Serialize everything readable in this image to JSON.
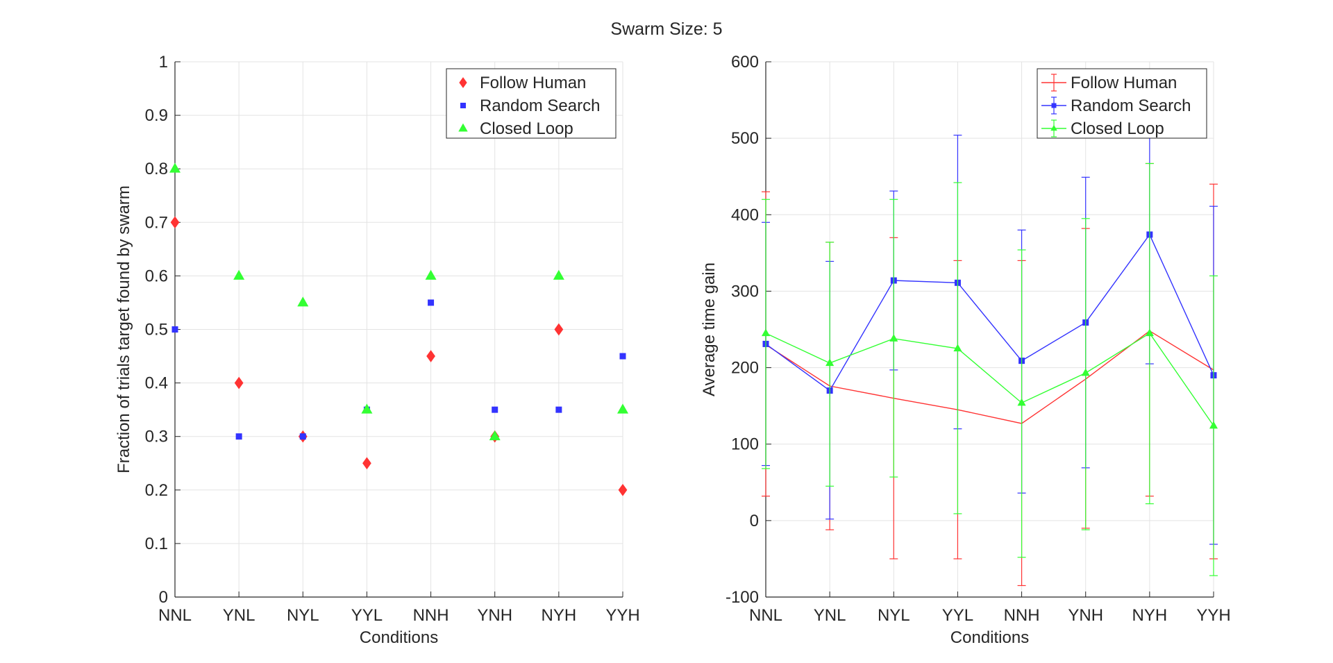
{
  "figure": {
    "title": "Swarm Size: 5",
    "colors": {
      "follow": "#ff3333",
      "random": "#3333ff",
      "closed": "#33ff33",
      "axis": "#262626",
      "grid": "#e3e3e3"
    }
  },
  "chart_data": [
    {
      "type": "scatter",
      "xlabel": "Conditions",
      "ylabel": "Fraction of trials target found by swarm",
      "categories": [
        "NNL",
        "YNL",
        "NYL",
        "YYL",
        "NNH",
        "YNH",
        "NYH",
        "YYH"
      ],
      "ylim": [
        0,
        1
      ],
      "yticks": [
        "0",
        "0.1",
        "0.2",
        "0.3",
        "0.4",
        "0.5",
        "0.6",
        "0.7",
        "0.8",
        "0.9",
        "1"
      ],
      "grid": true,
      "legend_position": "top-right",
      "series": [
        {
          "name": "Follow Human",
          "marker": "diamond",
          "values": [
            0.7,
            0.4,
            0.3,
            0.25,
            0.45,
            0.3,
            0.5,
            0.2
          ]
        },
        {
          "name": "Random Search",
          "marker": "square",
          "values": [
            0.5,
            0.3,
            0.3,
            0.35,
            0.55,
            0.35,
            0.35,
            0.45
          ]
        },
        {
          "name": "Closed Loop",
          "marker": "triangle",
          "values": [
            0.8,
            0.6,
            0.55,
            0.35,
            0.6,
            0.3,
            0.6,
            0.35
          ]
        }
      ]
    },
    {
      "type": "line",
      "xlabel": "Conditions",
      "ylabel": "Average time gain",
      "categories": [
        "NNL",
        "YNL",
        "NYL",
        "YYL",
        "NNH",
        "YNH",
        "NYH",
        "YYH"
      ],
      "ylim": [
        -100,
        600
      ],
      "yticks": [
        "-100",
        "0",
        "100",
        "200",
        "300",
        "400",
        "500",
        "600"
      ],
      "grid": true,
      "legend_position": "top-right",
      "series": [
        {
          "name": "Follow Human",
          "marker": "none",
          "values": [
            230,
            176,
            160,
            145,
            127,
            185,
            248,
            197
          ],
          "err_low": [
            32,
            -12,
            -50,
            -50,
            -85,
            -10,
            32,
            -50
          ],
          "err_high": [
            430,
            364,
            370,
            340,
            340,
            382,
            467,
            440
          ]
        },
        {
          "name": "Random Search",
          "marker": "square",
          "values": [
            231,
            170,
            314,
            311,
            209,
            259,
            374,
            190
          ],
          "err_low": [
            72,
            2,
            197,
            120,
            36,
            69,
            205,
            -31
          ],
          "err_high": [
            390,
            339,
            431,
            504,
            380,
            449,
            543,
            411
          ]
        },
        {
          "name": "Closed Loop",
          "marker": "triangle",
          "values": [
            245,
            206,
            238,
            225,
            154,
            193,
            245,
            124
          ],
          "err_low": [
            68,
            45,
            57,
            9,
            -48,
            -12,
            22,
            -72
          ],
          "err_high": [
            420,
            364,
            420,
            442,
            354,
            395,
            467,
            320
          ]
        }
      ]
    }
  ]
}
